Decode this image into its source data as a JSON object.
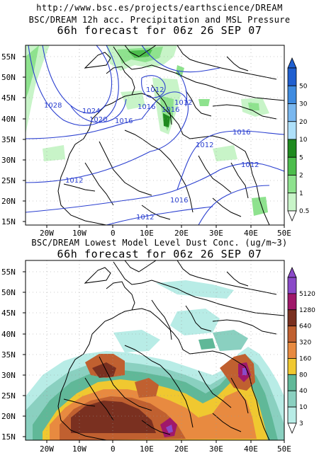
{
  "url": "http://www.bsc.es/projects/earthscience/DREAM",
  "panels": [
    {
      "id": "precip",
      "title_line1": "BSC/DREAM 12h acc. Precipitation and MSL Pressure",
      "title_line2": "66h forecast for 06z 26 SEP 07",
      "lat_labels": [
        "55N",
        "50N",
        "45N",
        "40N",
        "35N",
        "30N",
        "25N",
        "20N",
        "15N"
      ],
      "lon_labels": [
        "20W",
        "10W",
        "0",
        "10E",
        "20E",
        "30E",
        "40E",
        "50E"
      ],
      "colorbar_labels": [
        "50",
        "30",
        "20",
        "10",
        "5",
        "2",
        "1",
        "0.5"
      ],
      "colorbar_colors": [
        "#1f5fd0",
        "#3f8be0",
        "#79b7ef",
        "#aee0fa",
        "#1f8a1f",
        "#4cbd4c",
        "#8ee28e",
        "#c8f4c8"
      ],
      "isobar_labels": [
        "1028",
        "1024",
        "1020",
        "1016",
        "1012",
        "1016",
        "1016",
        "1012",
        "1016",
        "1012",
        "1012",
        "1016",
        "1012",
        "1012"
      ]
    },
    {
      "id": "dust",
      "title_line1": "BSC/DREAM Lowest Model Level Dust Conc. (ug/m~3)",
      "title_line2": "66h forecast for 06z 26 SEP 07",
      "lat_labels": [
        "55N",
        "50N",
        "45N",
        "40N",
        "35N",
        "30N",
        "25N",
        "20N",
        "15N"
      ],
      "lon_labels": [
        "20W",
        "10W",
        "0",
        "10E",
        "20E",
        "30E",
        "40E",
        "50E"
      ],
      "colorbar_labels": [
        "5120",
        "1280",
        "640",
        "320",
        "160",
        "80",
        "40",
        "10",
        "3"
      ],
      "colorbar_colors": [
        "#8a4ac8",
        "#a0186a",
        "#7a3020",
        "#c06030",
        "#e88a40",
        "#f0c830",
        "#60b898",
        "#8ad0c0",
        "#b8ece6"
      ]
    }
  ]
}
